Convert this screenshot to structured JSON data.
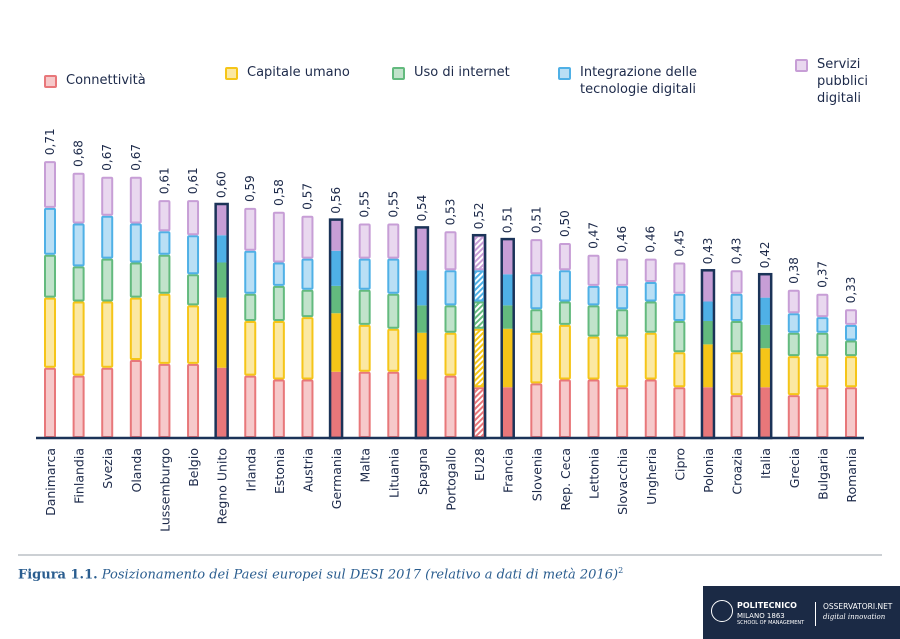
{
  "chart_data": {
    "type": "stacked-bar",
    "categories": [
      "Danimarca",
      "Finlandia",
      "Svezia",
      "Olanda",
      "Lussemburgo",
      "Belgio",
      "Regno Unito",
      "Irlanda",
      "Estonia",
      "Austria",
      "Germania",
      "Malta",
      "Lituania",
      "Spagna",
      "Portogallo",
      "EU28",
      "Francia",
      "Slovenia",
      "Rep. Ceca",
      "Lettonia",
      "Slovacchia",
      "Ungheria",
      "Cipro",
      "Polonia",
      "Croazia",
      "Italia",
      "Grecia",
      "Bulgaria",
      "Romania"
    ],
    "series": [
      {
        "name": "Connettività",
        "color": "#e8777a",
        "values": [
          0.18,
          0.16,
          0.18,
          0.2,
          0.19,
          0.19,
          0.18,
          0.16,
          0.15,
          0.15,
          0.17,
          0.17,
          0.17,
          0.15,
          0.16,
          0.13,
          0.13,
          0.14,
          0.15,
          0.15,
          0.13,
          0.15,
          0.13,
          0.13,
          0.11,
          0.13,
          0.11,
          0.13,
          0.13
        ]
      },
      {
        "name": "Capitale umano",
        "color": "#f5c518",
        "values": [
          0.18,
          0.19,
          0.17,
          0.16,
          0.18,
          0.15,
          0.18,
          0.14,
          0.15,
          0.16,
          0.15,
          0.12,
          0.11,
          0.12,
          0.11,
          0.15,
          0.15,
          0.13,
          0.14,
          0.11,
          0.13,
          0.12,
          0.09,
          0.11,
          0.11,
          0.1,
          0.1,
          0.08,
          0.08
        ]
      },
      {
        "name": "Uso di internet",
        "color": "#63ba7e",
        "values": [
          0.11,
          0.09,
          0.11,
          0.09,
          0.1,
          0.08,
          0.09,
          0.07,
          0.09,
          0.07,
          0.07,
          0.09,
          0.09,
          0.07,
          0.07,
          0.07,
          0.06,
          0.06,
          0.06,
          0.08,
          0.07,
          0.08,
          0.08,
          0.06,
          0.08,
          0.06,
          0.06,
          0.06,
          0.04
        ]
      },
      {
        "name": "Integrazione delle tecnologie digitali",
        "color": "#4fb0e6",
        "values": [
          0.12,
          0.11,
          0.11,
          0.1,
          0.06,
          0.1,
          0.07,
          0.11,
          0.06,
          0.08,
          0.09,
          0.08,
          0.09,
          0.09,
          0.09,
          0.08,
          0.08,
          0.09,
          0.08,
          0.05,
          0.06,
          0.05,
          0.07,
          0.05,
          0.07,
          0.07,
          0.05,
          0.04,
          0.04
        ]
      },
      {
        "name": "Servizi pubblici digitali",
        "color": "#c79ed6",
        "values": [
          0.12,
          0.13,
          0.1,
          0.12,
          0.08,
          0.09,
          0.08,
          0.11,
          0.13,
          0.11,
          0.08,
          0.09,
          0.09,
          0.11,
          0.1,
          0.09,
          0.09,
          0.09,
          0.07,
          0.08,
          0.07,
          0.06,
          0.08,
          0.08,
          0.06,
          0.06,
          0.06,
          0.06,
          0.04
        ]
      }
    ],
    "totals": [
      0.71,
      0.68,
      0.67,
      0.67,
      0.61,
      0.61,
      0.6,
      0.59,
      0.58,
      0.57,
      0.56,
      0.55,
      0.55,
      0.54,
      0.53,
      0.52,
      0.51,
      0.51,
      0.5,
      0.47,
      0.46,
      0.46,
      0.45,
      0.43,
      0.43,
      0.42,
      0.38,
      0.37,
      0.33
    ],
    "total_labels": [
      "0,71",
      "0,68",
      "0,67",
      "0,67",
      "0,61",
      "0,61",
      "0,60",
      "0,59",
      "0,58",
      "0,57",
      "0,56",
      "0,55",
      "0,55",
      "0,54",
      "0,53",
      "0,52",
      "0,51",
      "0,51",
      "0,50",
      "0,47",
      "0,46",
      "0,46",
      "0,45",
      "0,43",
      "0,43",
      "0,42",
      "0,38",
      "0,37",
      "0,33"
    ],
    "highlighted": [
      "Regno Unito",
      "Germania",
      "Spagna",
      "EU28",
      "Francia",
      "Polonia",
      "Italia"
    ],
    "hatched": [
      "EU28"
    ],
    "ylim": [
      0,
      0.8
    ]
  },
  "caption": {
    "label": "Figura 1.1.",
    "text": "Posizionamento dei Paesi europei sul DESI 2017 (relativo a dati di metà 2016)",
    "note": "2"
  },
  "logo": {
    "name": "POLITECNICO",
    "city": "MILANO 1863",
    "school": "SCHOOL OF MANAGEMENT",
    "brand": "OSSERVATORI.NET",
    "tagline": "digital innovation"
  }
}
